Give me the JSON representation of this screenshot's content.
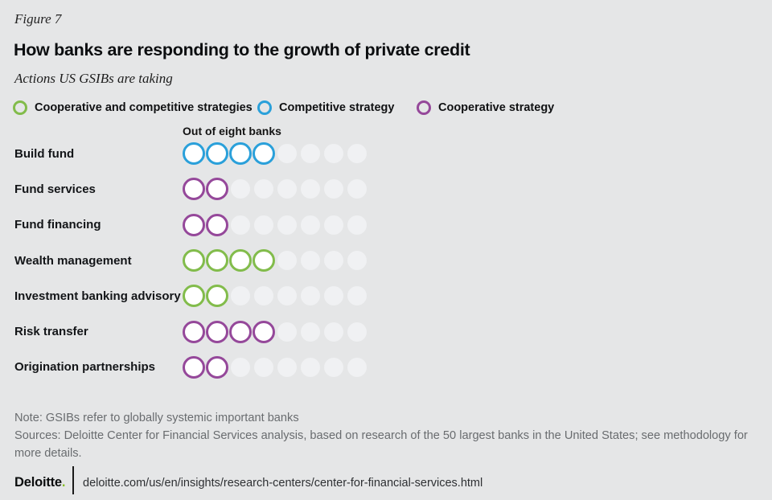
{
  "figure_label": "Figure 7",
  "title": "How banks are responding to the growth of private credit",
  "subtitle": "Actions US GSIBs are taking",
  "legend": [
    {
      "label": "Cooperative and competitive strategies",
      "color": "#82BC4B",
      "key": "both"
    },
    {
      "label": "Competitive strategy",
      "color": "#2AA0DA",
      "key": "competitive"
    },
    {
      "label": "Cooperative strategy",
      "color": "#95489A",
      "key": "cooperative"
    }
  ],
  "chart_data": {
    "type": "dot-matrix",
    "title": "How banks are responding to the growth of private credit",
    "subtitle": "Actions US GSIBs are taking",
    "unit_label": "Out of eight banks",
    "total_per_row": 8,
    "categories": [
      "Build fund",
      "Fund services",
      "Fund financing",
      "Wealth management",
      "Investment banking advisory",
      "Risk transfer",
      "Origination partnerships"
    ],
    "values": [
      4,
      2,
      2,
      4,
      2,
      4,
      2
    ],
    "strategies": [
      "competitive",
      "cooperative",
      "cooperative",
      "both",
      "both",
      "cooperative",
      "cooperative"
    ],
    "colors": {
      "both": "#82BC4B",
      "competitive": "#2AA0DA",
      "cooperative": "#95489A",
      "empty": "#F0F1F3"
    },
    "legend_position": "top"
  },
  "notes": {
    "note": "Note: GSIBs refer to globally systemic important banks",
    "sources": "Sources: Deloitte Center for Financial Services analysis, based on research of the 50 largest banks in the United States; see methodology for more details."
  },
  "footer": {
    "brand": "Deloitte",
    "brand_suffix": ".",
    "brand_dot_color": "#86BC25",
    "url": "deloitte.com/us/en/insights/research-centers/center-for-financial-services.html"
  }
}
